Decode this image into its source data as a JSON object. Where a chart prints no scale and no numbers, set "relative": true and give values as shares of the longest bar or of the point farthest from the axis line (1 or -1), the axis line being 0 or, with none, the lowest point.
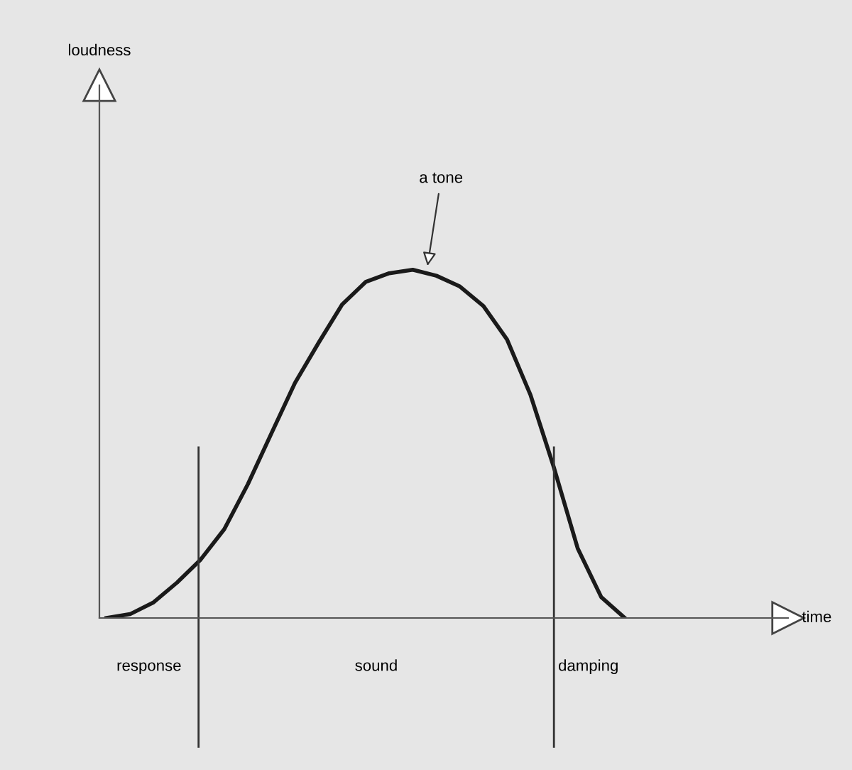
{
  "chart_data": {
    "type": "line",
    "relative": true,
    "categories": [
      null,
      null,
      null,
      null,
      null,
      null,
      null,
      null,
      null,
      null,
      null,
      null,
      null,
      null,
      null,
      null,
      null,
      null,
      null,
      null,
      null,
      null,
      null
    ],
    "series": [
      {
        "color": "#1a1a1a",
        "values": [
          0,
          0.011,
          0.045,
          0.102,
          0.168,
          0.255,
          0.384,
          0.53,
          0.675,
          0.79,
          0.9,
          0.965,
          0.99,
          1,
          0.983,
          0.952,
          0.896,
          0.8,
          0.64,
          0.43,
          0.2,
          0.06,
          0
        ]
      }
    ],
    "annotations": [
      "loudness",
      "a tone",
      "response",
      "sound",
      "damping",
      "time"
    ],
    "legend": false,
    "marker": "none",
    "line_style": "solid"
  }
}
